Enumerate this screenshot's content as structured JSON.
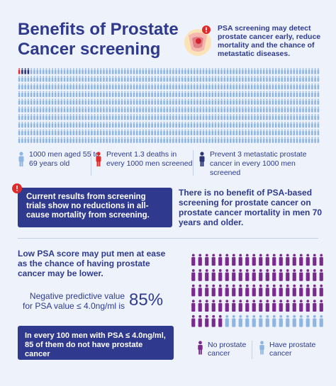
{
  "header": {
    "title": "Benefits of Prostate Cancer screening",
    "intro": "PSA screening may detect prostate cancer early, reduce mortality and the chance of metastatic diseases."
  },
  "colors": {
    "navy": "#2f3a8f",
    "light_person": "#8fb6e3",
    "red": "#e02b2b",
    "purple": "#7a2a8e",
    "dark_person": "#2a3578"
  },
  "people_grid": {
    "total": 1000,
    "red_count": 1,
    "dark_count": 3,
    "highlighted_count": 4
  },
  "legend": {
    "item1": "1000 men aged 55 to 69 years old",
    "item2": "Prevent 1.3 deaths in every 1000 men screened",
    "item3": "Prevent 3 metastatic prostate cancer in every 1000 men screened"
  },
  "alert": {
    "text": "Current results from screening trials show no reductions in all-cause mortality from screening."
  },
  "right_text": "There is no benefit of PSA-based screening for prostate cancer on prostate cancer mortality in men 70 years and older.",
  "low_psa": "Low PSA score may put men at ease as the chance of having prostate cancer may be lower.",
  "npv": {
    "label": "Negative predictive value for PSA value ≤ 4.0ng/ml is",
    "value": "85%"
  },
  "blue_box": "In every 100 men with PSA ≤ 4.0ng/ml, 85 of them do not have prostate cancer",
  "small_grid": {
    "total": 100,
    "no_cancer": 85,
    "cancer": 15
  },
  "small_legend": {
    "no_cancer": "No prostate cancer",
    "have_cancer": "Have prostate cancer"
  }
}
